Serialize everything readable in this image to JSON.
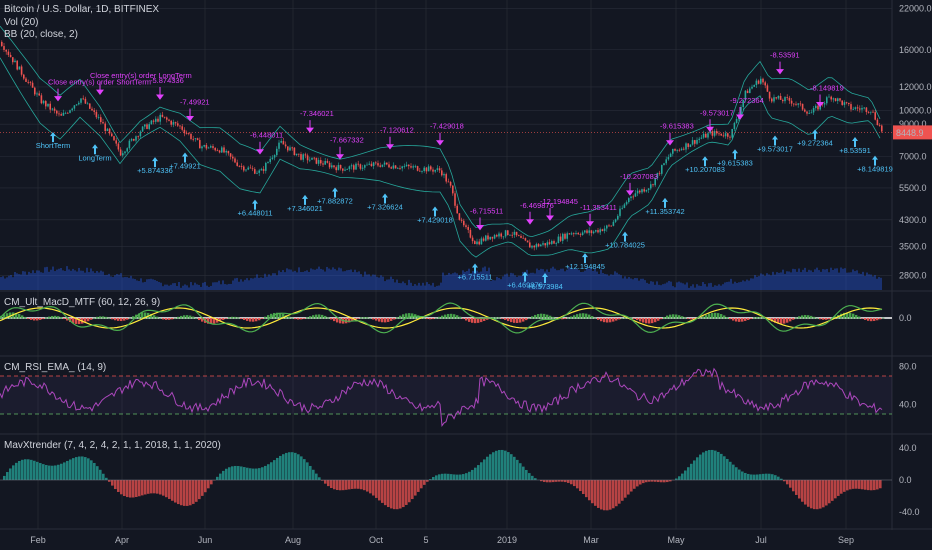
{
  "header": {
    "title": "Bitcoin / U.S. Dollar, 1D, BITFINEX",
    "indicators": [
      "Vol (20)",
      "BB (20, close, 2)"
    ]
  },
  "price_tag": {
    "value": "8448.9",
    "color": "#ef5350"
  },
  "colors": {
    "up": "#26a69a",
    "down": "#ef5350",
    "bb": "#26a69a",
    "volume": "#2962ff",
    "macd_fast": "#4caf50",
    "macd_slow": "#ffeb3b",
    "rsi": "#ab47bc",
    "bg": "#131722",
    "grid": "#2a2e39"
  },
  "panels": [
    {
      "id": "price",
      "label": ""
    },
    {
      "id": "macd",
      "label": "CM_Ult_MacD_MTF (60, 12, 26, 9)"
    },
    {
      "id": "rsi",
      "label": "CM_RSI_EMA_ (14, 9)"
    },
    {
      "id": "trend",
      "label": "MavXtrender (7, 4, 2, 4, 2, 1, 1, 2018, 1, 1, 2020)"
    }
  ],
  "chart_data": [
    {
      "type": "candlestick",
      "y_scale": "log",
      "y_ticks": [
        "22000.0",
        "16000.0",
        "12000.0",
        "10000.0",
        "9000.0",
        "7000.0",
        "5500.0",
        "4300.0",
        "3500.0",
        "2800.0"
      ],
      "x_ticks": [
        "Feb",
        "Apr",
        "Jun",
        "Aug",
        "Oct",
        "5",
        "2019",
        "Mar",
        "May",
        "Jul",
        "Sep"
      ],
      "last_close": 8448.9,
      "annotations": [
        {
          "text": "Close entry(s) order ShortTerm",
          "kind": "close"
        },
        {
          "text": "Close entry(s) order LongTerm",
          "kind": "close"
        },
        {
          "text": "ShortTerm",
          "kind": "entry"
        },
        {
          "text": "LongTerm",
          "kind": "entry"
        },
        {
          "text": "-5.874336",
          "kind": "close"
        },
        {
          "text": "-7.49921",
          "kind": "close"
        },
        {
          "text": "-6.448011",
          "kind": "close"
        },
        {
          "text": "-7.346021",
          "kind": "close"
        },
        {
          "text": "-7.667332",
          "kind": "close"
        },
        {
          "text": "-7.120612",
          "kind": "close"
        },
        {
          "text": "-7.429018",
          "kind": "close"
        },
        {
          "text": "-6.715511",
          "kind": "close"
        },
        {
          "text": "-6.469876",
          "kind": "close"
        },
        {
          "text": "-12.194845",
          "kind": "close"
        },
        {
          "text": "-11.353411",
          "kind": "close"
        },
        {
          "text": "-10.207083",
          "kind": "close"
        },
        {
          "text": "-9.615383",
          "kind": "close"
        },
        {
          "text": "-9.573017",
          "kind": "close"
        },
        {
          "text": "-9.272364",
          "kind": "close"
        },
        {
          "text": "-8.53591",
          "kind": "close"
        },
        {
          "text": "-8.149819",
          "kind": "close"
        },
        {
          "text": "+5.874336",
          "kind": "entry"
        },
        {
          "text": "+7.49921",
          "kind": "entry"
        },
        {
          "text": "+6.448011",
          "kind": "entry"
        },
        {
          "text": "+7.346021",
          "kind": "entry"
        },
        {
          "text": "+7.882872",
          "kind": "entry"
        },
        {
          "text": "+7.326624",
          "kind": "entry"
        },
        {
          "text": "+7.429018",
          "kind": "entry"
        },
        {
          "text": "+6.715511",
          "kind": "entry"
        },
        {
          "text": "+6.469876",
          "kind": "entry"
        },
        {
          "text": "+6.573984",
          "kind": "entry"
        },
        {
          "text": "+12.194845",
          "kind": "entry"
        },
        {
          "text": "+10.784025",
          "kind": "entry"
        },
        {
          "text": "+11.353742",
          "kind": "entry"
        },
        {
          "text": "+10.207083",
          "kind": "entry"
        },
        {
          "text": "+9.615383",
          "kind": "entry"
        },
        {
          "text": "+9.573017",
          "kind": "entry"
        },
        {
          "text": "+9.272364",
          "kind": "entry"
        },
        {
          "text": "+8.53591",
          "kind": "entry"
        },
        {
          "text": "+8.149819",
          "kind": "entry"
        }
      ]
    },
    {
      "type": "line",
      "panel": "macd",
      "y_ticks": [
        "0.0"
      ]
    },
    {
      "type": "line",
      "panel": "rsi",
      "y_ticks": [
        "80.0",
        "40.0"
      ],
      "bands": [
        70,
        30
      ]
    },
    {
      "type": "histogram",
      "panel": "trend",
      "y_ticks": [
        "40.0",
        "0.0",
        "-40.0"
      ]
    }
  ]
}
